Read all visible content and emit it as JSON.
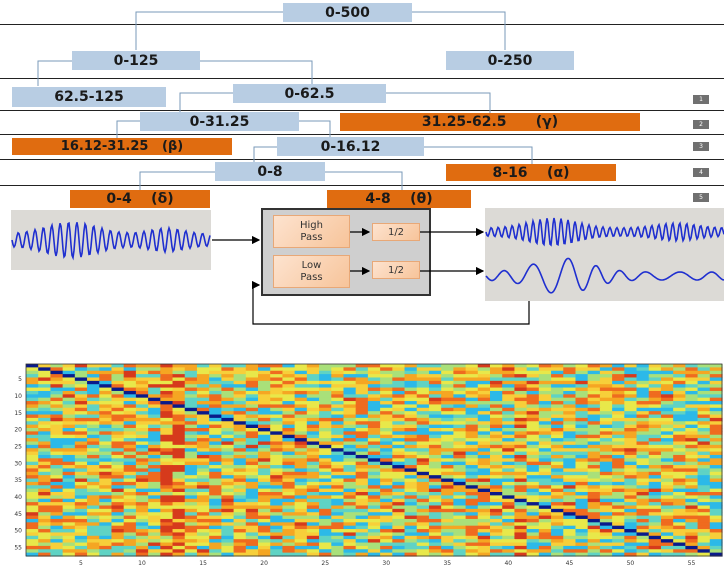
{
  "tree": {
    "root": "0-500",
    "l1_left": "0-125",
    "l1_right": "0-250",
    "l2_left": "62.5-125",
    "l2_mid": "0-62.5",
    "l3_left": "0-31.25",
    "l3_right": "31.25-62.5      (γ)",
    "l4_left": "16.12-31.25   (β)",
    "l4_mid": "0-16.12",
    "l5_left": "0-8",
    "l5_right": "8-16    (α)",
    "l6_left": "0-4    (δ)",
    "l6_right": "4-8    (θ)"
  },
  "levels": [
    "1",
    "2",
    "3",
    "4",
    "5"
  ],
  "filter_bank": {
    "high_pass": "High\nPass",
    "low_pass": "Low\nPass",
    "downsample": "1/2"
  },
  "colors": {
    "blue_node": "#b8cde3",
    "orange_node": "#e06c10",
    "signal": "#1f2fd0"
  },
  "heatmap": {
    "rows": 57,
    "cols": 57,
    "y_ticks": [
      "5",
      "10",
      "15",
      "20",
      "25",
      "30",
      "35",
      "40",
      "45",
      "50",
      "55"
    ],
    "x_ticks": [
      "5",
      "10",
      "15",
      "20",
      "25",
      "30",
      "35",
      "40",
      "45",
      "50",
      "55"
    ]
  }
}
